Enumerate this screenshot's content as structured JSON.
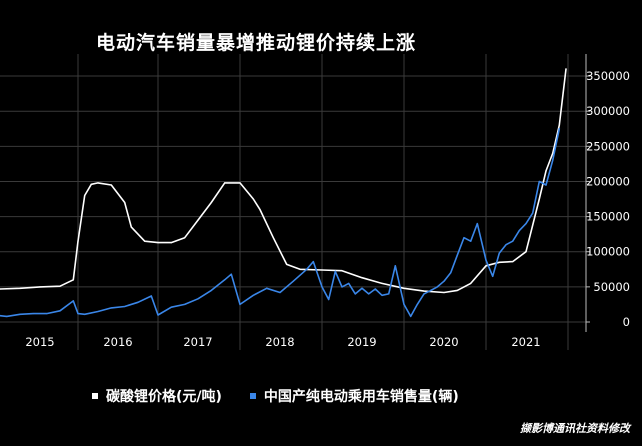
{
  "colors": {
    "lithium": "#ffffff",
    "ev_sales": "#3a86e8",
    "background": "#000000",
    "grid": "#3a3a3a"
  },
  "chart_data": {
    "type": "line",
    "title": "电动汽车销量暴增推动锂价持续上涨",
    "xlabel": "",
    "ylabel": "",
    "years": [
      "2015",
      "2016",
      "2017",
      "2018",
      "2019",
      "2020",
      "2021"
    ],
    "ylim": [
      0,
      370000
    ],
    "yticks": [
      0,
      50000,
      100000,
      150000,
      200000,
      250000,
      300000,
      350000
    ],
    "ytick_labels": [
      "0",
      "50000",
      "100000",
      "150000",
      "200000",
      "250000",
      "300000",
      "350000"
    ],
    "grid": true,
    "legend_position": "bottom",
    "series": [
      {
        "name": "碳酸锂价格(元/吨)",
        "color": "#ffffff",
        "points": [
          [
            "2015-01",
            47000
          ],
          [
            "2015-04",
            48000
          ],
          [
            "2015-07",
            50000
          ],
          [
            "2015-10",
            51000
          ],
          [
            "2015-12",
            60000
          ],
          [
            "2016-01",
            115000
          ],
          [
            "2016-02",
            180000
          ],
          [
            "2016-03",
            196000
          ],
          [
            "2016-04",
            198000
          ],
          [
            "2016-06",
            195000
          ],
          [
            "2016-08",
            170000
          ],
          [
            "2016-09",
            135000
          ],
          [
            "2016-11",
            115000
          ],
          [
            "2017-01",
            113000
          ],
          [
            "2017-03",
            113000
          ],
          [
            "2017-05",
            120000
          ],
          [
            "2017-07",
            145000
          ],
          [
            "2017-09",
            170000
          ],
          [
            "2017-11",
            198000
          ],
          [
            "2018-01",
            198000
          ],
          [
            "2018-03",
            175000
          ],
          [
            "2018-04",
            160000
          ],
          [
            "2018-06",
            120000
          ],
          [
            "2018-08",
            82000
          ],
          [
            "2018-10",
            75000
          ],
          [
            "2019-01",
            74000
          ],
          [
            "2019-04",
            73000
          ],
          [
            "2019-07",
            63000
          ],
          [
            "2019-10",
            55000
          ],
          [
            "2020-01",
            48000
          ],
          [
            "2020-04",
            44000
          ],
          [
            "2020-07",
            42000
          ],
          [
            "2020-09",
            45000
          ],
          [
            "2020-11",
            55000
          ],
          [
            "2021-01",
            80000
          ],
          [
            "2021-03",
            85000
          ],
          [
            "2021-05",
            86000
          ],
          [
            "2021-07",
            100000
          ],
          [
            "2021-09",
            175000
          ],
          [
            "2021-10",
            215000
          ],
          [
            "2021-11",
            240000
          ],
          [
            "2021-12",
            280000
          ],
          [
            "2022-01",
            360000
          ]
        ]
      },
      {
        "name": "中国产纯电动乘用车销售量(辆)",
        "color": "#3a86e8",
        "points": [
          [
            "2015-01",
            9000
          ],
          [
            "2015-02",
            8000
          ],
          [
            "2015-04",
            11000
          ],
          [
            "2015-06",
            12000
          ],
          [
            "2015-08",
            12000
          ],
          [
            "2015-10",
            16000
          ],
          [
            "2015-12",
            30000
          ],
          [
            "2016-01",
            12000
          ],
          [
            "2016-02",
            11000
          ],
          [
            "2016-04",
            15000
          ],
          [
            "2016-06",
            20000
          ],
          [
            "2016-08",
            22000
          ],
          [
            "2016-10",
            28000
          ],
          [
            "2016-12",
            37000
          ],
          [
            "2017-01",
            10000
          ],
          [
            "2017-03",
            21000
          ],
          [
            "2017-05",
            25000
          ],
          [
            "2017-07",
            33000
          ],
          [
            "2017-09",
            45000
          ],
          [
            "2017-11",
            60000
          ],
          [
            "2017-12",
            68000
          ],
          [
            "2018-01",
            25000
          ],
          [
            "2018-03",
            38000
          ],
          [
            "2018-05",
            48000
          ],
          [
            "2018-07",
            42000
          ],
          [
            "2018-09",
            58000
          ],
          [
            "2018-11",
            75000
          ],
          [
            "2018-12",
            86000
          ],
          [
            "2019-01",
            50000
          ],
          [
            "2019-02",
            32000
          ],
          [
            "2019-03",
            72000
          ],
          [
            "2019-04",
            50000
          ],
          [
            "2019-05",
            55000
          ],
          [
            "2019-06",
            40000
          ],
          [
            "2019-07",
            48000
          ],
          [
            "2019-08",
            40000
          ],
          [
            "2019-09",
            47000
          ],
          [
            "2019-10",
            38000
          ],
          [
            "2019-11",
            40000
          ],
          [
            "2019-12",
            80000
          ],
          [
            "2020-01",
            25000
          ],
          [
            "2020-02",
            8000
          ],
          [
            "2020-03",
            25000
          ],
          [
            "2020-04",
            40000
          ],
          [
            "2020-05",
            45000
          ],
          [
            "2020-06",
            50000
          ],
          [
            "2020-07",
            58000
          ],
          [
            "2020-08",
            70000
          ],
          [
            "2020-09",
            95000
          ],
          [
            "2020-10",
            120000
          ],
          [
            "2020-11",
            115000
          ],
          [
            "2020-12",
            140000
          ],
          [
            "2021-01",
            88000
          ],
          [
            "2021-02",
            65000
          ],
          [
            "2021-03",
            98000
          ],
          [
            "2021-04",
            110000
          ],
          [
            "2021-05",
            115000
          ],
          [
            "2021-06",
            130000
          ],
          [
            "2021-07",
            140000
          ],
          [
            "2021-08",
            155000
          ],
          [
            "2021-09",
            200000
          ],
          [
            "2021-10",
            195000
          ],
          [
            "2021-11",
            230000
          ],
          [
            "2021-12",
            275000
          ]
        ]
      }
    ]
  },
  "source_note": "撷影博通讯社资料修改"
}
